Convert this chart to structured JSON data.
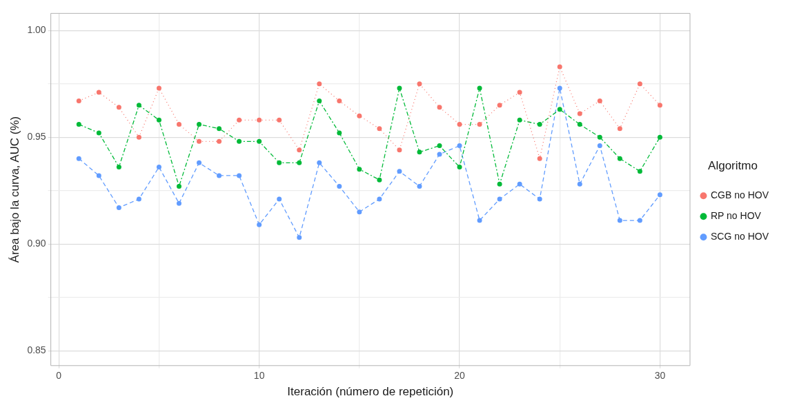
{
  "chart_data": {
    "type": "line",
    "xlabel": "Iteración (número de repetición)",
    "ylabel": "Área bajo la curva, AUC (%)",
    "legend_title": "Algoritmo",
    "legend": "right",
    "grid": true,
    "marker": "circle",
    "x": [
      1,
      2,
      3,
      4,
      5,
      6,
      7,
      8,
      9,
      10,
      11,
      12,
      13,
      14,
      15,
      16,
      17,
      18,
      19,
      20,
      21,
      22,
      23,
      24,
      25,
      26,
      27,
      28,
      29,
      30
    ],
    "xlim": [
      -0.4,
      31.5
    ],
    "xticks": [
      0,
      {
        "value": 5,
        "label": null
      },
      10,
      {
        "value": 15,
        "label": null
      },
      20,
      {
        "value": 25,
        "label": null
      },
      30
    ],
    "ylim": [
      0.843,
      1.008
    ],
    "yticks": [
      0.85,
      {
        "value": 0.875,
        "label": null
      },
      {
        "value": 0.9,
        "label": "0.90"
      },
      {
        "value": 0.925,
        "label": null
      },
      0.95,
      {
        "value": 0.975,
        "label": null
      },
      {
        "value": 1,
        "label": "1.00"
      }
    ],
    "series": [
      {
        "name": "CGB no HOV",
        "color": "#f8766d",
        "line_style": "dotted",
        "values": [
          0.967,
          0.971,
          0.964,
          0.95,
          0.973,
          0.956,
          0.948,
          0.948,
          0.958,
          0.958,
          0.958,
          0.944,
          0.975,
          0.967,
          0.96,
          0.954,
          0.944,
          0.975,
          0.964,
          0.956,
          0.956,
          0.965,
          0.971,
          0.94,
          0.983,
          0.961,
          0.967,
          0.954,
          0.975,
          0.965
        ]
      },
      {
        "name": "RP no HOV",
        "color": "#00ba38",
        "line_style": "dashed",
        "values": [
          0.956,
          0.952,
          0.936,
          0.965,
          0.958,
          0.927,
          0.956,
          0.954,
          0.948,
          0.948,
          0.938,
          0.938,
          0.967,
          0.952,
          0.935,
          0.93,
          0.973,
          0.943,
          0.946,
          0.936,
          0.973,
          0.928,
          0.958,
          0.956,
          0.963,
          0.956,
          0.95,
          0.94,
          0.934,
          0.95
        ]
      },
      {
        "name": "SCG no HOV",
        "color": "#619cff",
        "line_style": "dashed",
        "values": [
          0.94,
          0.932,
          0.917,
          0.921,
          0.936,
          0.919,
          0.938,
          0.932,
          0.932,
          0.909,
          0.921,
          0.903,
          0.938,
          0.927,
          0.915,
          0.921,
          0.934,
          0.927,
          0.942,
          0.946,
          0.911,
          0.921,
          0.928,
          0.921,
          0.973,
          0.928,
          0.946,
          0.911,
          0.911,
          0.923
        ]
      }
    ]
  }
}
